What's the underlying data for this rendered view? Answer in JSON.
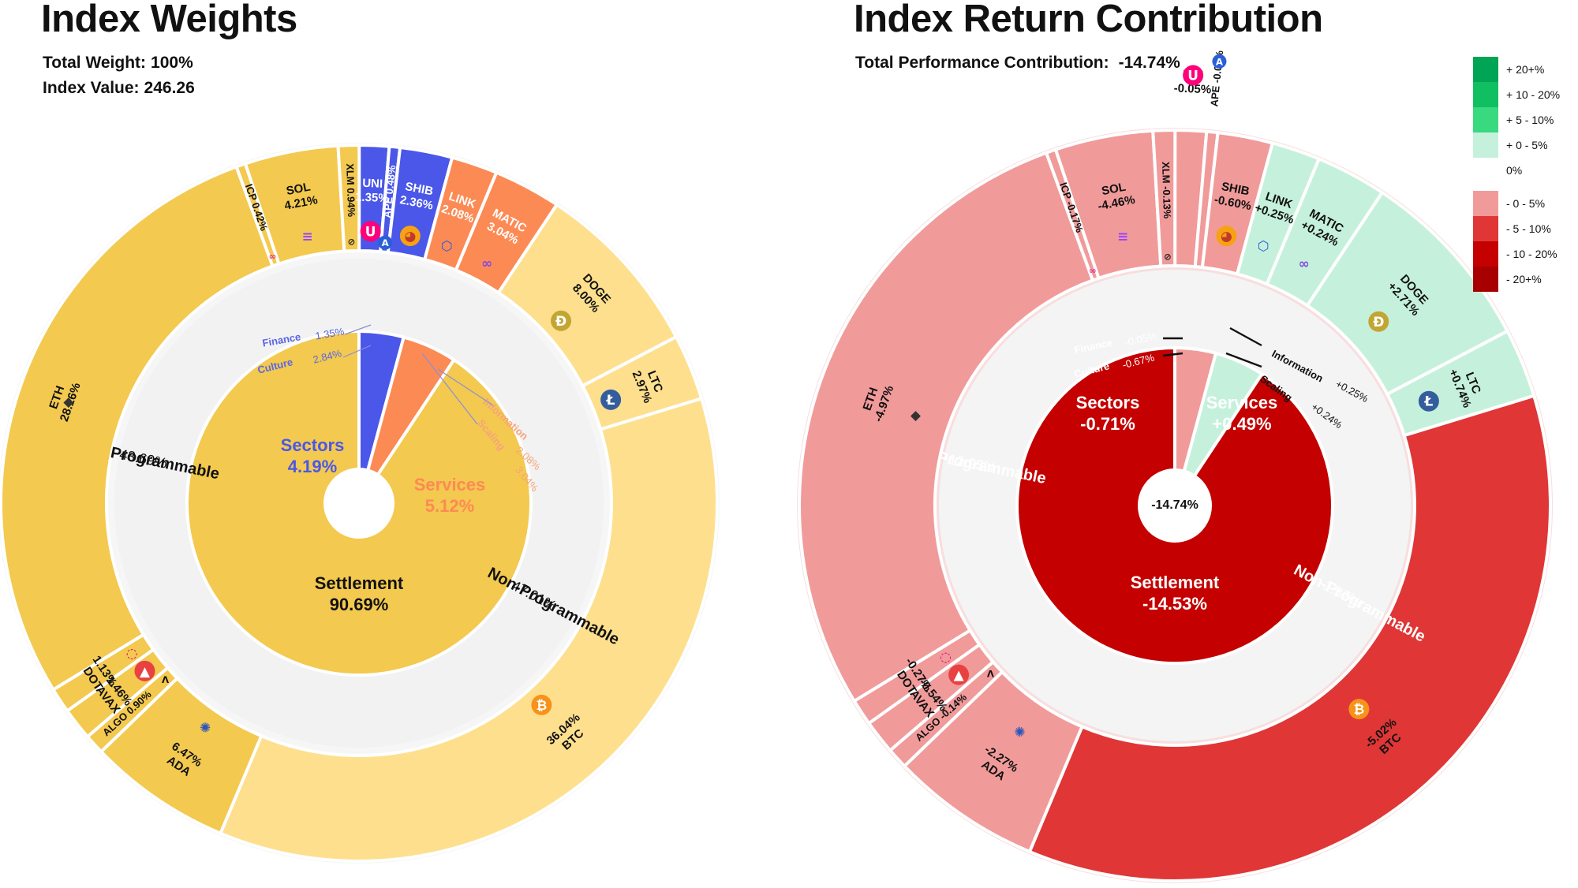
{
  "weights": {
    "title": "Index Weights",
    "total_weight_label": "Total Weight:",
    "total_weight_value": "100%",
    "index_value_label": "Index Value:",
    "index_value": "246.26"
  },
  "returns": {
    "title": "Index Return Contribution",
    "total_label": "Total Performance Contribution:",
    "total_value": "-14.74%"
  },
  "legend": [
    {
      "label": "+ 20+%",
      "color": "#00a455"
    },
    {
      "label": "+ 10 - 20%",
      "color": "#10bf62"
    },
    {
      "label": "+ 5 - 10%",
      "color": "#39d97f"
    },
    {
      "label": "+ 0 - 5%",
      "color": "#c5f1dc"
    },
    {
      "label": "0%",
      "color": "#ffffff"
    },
    {
      "label": "- 0 - 5%",
      "color": "#f19a9a"
    },
    {
      "label": "- 5 - 10%",
      "color": "#e03636"
    },
    {
      "label": "- 10 - 20%",
      "color": "#c40000"
    },
    {
      "label": "- 20+%",
      "color": "#a80000"
    }
  ],
  "icons": {
    "ETH": "ethereum-icon",
    "SOL": "solana-icon",
    "ICP": "internet-computer-icon",
    "XLM": "stellar-icon",
    "APE": "apecoin-icon",
    "SHIB": "shiba-inu-icon",
    "UNI": "uniswap-icon",
    "LINK": "chainlink-icon",
    "MATIC": "polygon-icon",
    "DOGE": "dogecoin-icon",
    "LTC": "litecoin-icon",
    "BTC": "bitcoin-icon",
    "ADA": "cardano-icon",
    "ALGO": "algorand-icon",
    "AVAX": "avalanche-icon",
    "DOT": "polkadot-icon"
  },
  "chart_data": [
    {
      "type": "sunburst",
      "title": "Index Weights",
      "center_label": "",
      "rings": {
        "sectors": [
          {
            "name": "Sectors",
            "value": 4.19,
            "label": "4.19%",
            "color": "#4a57e8"
          },
          {
            "name": "Services",
            "value": 5.12,
            "label": "5.12%",
            "color": "#fc8a55"
          },
          {
            "name": "Settlement",
            "value": 90.69,
            "label": "90.69%",
            "color": "#f3c94f"
          }
        ],
        "groups": [
          {
            "name": "Finance",
            "value": 1.35,
            "label": "1.35%",
            "sector": "Sectors",
            "color": "#4a57e8"
          },
          {
            "name": "Culture",
            "value": 2.84,
            "label": "2.84%",
            "sector": "Sectors",
            "color": "#4a57e8"
          },
          {
            "name": "Information",
            "value": 2.08,
            "label": "2.08%",
            "sector": "Services",
            "color": "#fc8a55"
          },
          {
            "name": "Scaling",
            "value": 3.04,
            "label": "3.04%",
            "sector": "Services",
            "color": "#fc8a55"
          },
          {
            "name": "Non-Programmable",
            "value": 47.01,
            "label": "47.01%",
            "sector": "Settlement",
            "color": "#fddf8e"
          },
          {
            "name": "Programmable",
            "value": 43.69,
            "label": "43.69%",
            "sector": "Settlement",
            "color": "#f3c94f"
          }
        ],
        "assets": [
          {
            "name": "UNI",
            "value": 1.35,
            "label": "1.35%",
            "group": "Finance",
            "color": "#4a57e8"
          },
          {
            "name": "APE",
            "value": 0.48,
            "label": "0.48%",
            "group": "Culture",
            "color": "#4a57e8"
          },
          {
            "name": "SHIB",
            "value": 2.36,
            "label": "2.36%",
            "group": "Culture",
            "color": "#4a57e8"
          },
          {
            "name": "LINK",
            "value": 2.08,
            "label": "2.08%",
            "group": "Information",
            "color": "#fc8a55"
          },
          {
            "name": "MATIC",
            "value": 3.04,
            "label": "3.04%",
            "group": "Scaling",
            "color": "#fc8a55"
          },
          {
            "name": "DOGE",
            "value": 8.0,
            "label": "8.00%",
            "group": "Non-Programmable",
            "color": "#fddf8e"
          },
          {
            "name": "LTC",
            "value": 2.97,
            "label": "2.97%",
            "group": "Non-Programmable",
            "color": "#fddf8e"
          },
          {
            "name": "BTC",
            "value": 36.04,
            "label": "36.04%",
            "group": "Non-Programmable",
            "color": "#fddf8e"
          },
          {
            "name": "ADA",
            "value": 6.47,
            "label": "6.47%",
            "group": "Programmable",
            "color": "#f3c94f"
          },
          {
            "name": "ALGO",
            "value": 0.9,
            "label": "0.90%",
            "group": "Programmable",
            "color": "#f3c94f"
          },
          {
            "name": "AVAX",
            "value": 1.46,
            "label": "1.46%",
            "group": "Programmable",
            "color": "#f3c94f"
          },
          {
            "name": "DOT",
            "value": 1.13,
            "label": "1.13%",
            "group": "Programmable",
            "color": "#f3c94f"
          },
          {
            "name": "ETH",
            "value": 28.16,
            "label": "28.16%",
            "group": "Programmable",
            "color": "#f3c94f"
          },
          {
            "name": "ICP",
            "value": 0.42,
            "label": "0.42%",
            "group": "Programmable",
            "color": "#f3c94f"
          },
          {
            "name": "SOL",
            "value": 4.21,
            "label": "4.21%",
            "group": "Programmable",
            "color": "#f3c94f"
          },
          {
            "name": "XLM",
            "value": 0.94,
            "label": "0.94%",
            "group": "Programmable",
            "color": "#f3c94f"
          }
        ]
      }
    },
    {
      "type": "sunburst",
      "title": "Index Return Contribution",
      "center_label": "-14.74%",
      "rings": {
        "sectors": [
          {
            "name": "Sectors",
            "value": 4.19,
            "label": "-0.71%",
            "color": "#f19a9a"
          },
          {
            "name": "Services",
            "value": 5.12,
            "label": "+0.49%",
            "color": "#c5f1dc"
          },
          {
            "name": "Settlement",
            "value": 90.69,
            "label": "-14.53%",
            "color": "#c40000"
          }
        ],
        "groups": [
          {
            "name": "Finance",
            "value": 1.35,
            "label": "-0.05%",
            "sector": "Sectors",
            "color": "#f19a9a"
          },
          {
            "name": "Culture",
            "value": 2.84,
            "label": "-0.67%",
            "sector": "Sectors",
            "color": "#f19a9a"
          },
          {
            "name": "Information",
            "value": 2.08,
            "label": "+0.25%",
            "sector": "Services",
            "color": "#c5f1dc"
          },
          {
            "name": "Scaling",
            "value": 3.04,
            "label": "+0.24%",
            "sector": "Services",
            "color": "#c5f1dc"
          },
          {
            "name": "Non-Programmable",
            "value": 47.01,
            "label": "-1.57%",
            "sector": "Settlement",
            "color": "#f19a9a"
          },
          {
            "name": "Programmable",
            "value": 43.69,
            "label": "-12.95%",
            "sector": "Settlement",
            "color": "#c40000"
          }
        ],
        "assets": [
          {
            "name": "UNI",
            "value": 1.35,
            "label": "-0.05%",
            "group": "Finance",
            "color": "#f19a9a"
          },
          {
            "name": "APE",
            "value": 0.48,
            "label": "-0.07%",
            "group": "Culture",
            "color": "#f19a9a"
          },
          {
            "name": "SHIB",
            "value": 2.36,
            "label": "-0.60%",
            "group": "Culture",
            "color": "#f19a9a"
          },
          {
            "name": "LINK",
            "value": 2.08,
            "label": "+0.25%",
            "group": "Information",
            "color": "#c5f1dc"
          },
          {
            "name": "MATIC",
            "value": 3.04,
            "label": "+0.24%",
            "group": "Scaling",
            "color": "#c5f1dc"
          },
          {
            "name": "DOGE",
            "value": 8.0,
            "label": "+2.71%",
            "group": "Non-Programmable",
            "color": "#c5f1dc"
          },
          {
            "name": "LTC",
            "value": 2.97,
            "label": "+0.74%",
            "group": "Non-Programmable",
            "color": "#c5f1dc"
          },
          {
            "name": "BTC",
            "value": 36.04,
            "label": "-5.02%",
            "group": "Non-Programmable",
            "color": "#e03636"
          },
          {
            "name": "ADA",
            "value": 6.47,
            "label": "-2.27%",
            "group": "Programmable",
            "color": "#f19a9a"
          },
          {
            "name": "ALGO",
            "value": 0.9,
            "label": "-0.14%",
            "group": "Programmable",
            "color": "#f19a9a"
          },
          {
            "name": "AVAX",
            "value": 1.46,
            "label": "-0.54%",
            "group": "Programmable",
            "color": "#f19a9a"
          },
          {
            "name": "DOT",
            "value": 1.13,
            "label": "-0.27%",
            "group": "Programmable",
            "color": "#f19a9a"
          },
          {
            "name": "ETH",
            "value": 28.16,
            "label": "-4.97%",
            "group": "Programmable",
            "color": "#f19a9a"
          },
          {
            "name": "ICP",
            "value": 0.42,
            "label": "-0.17%",
            "group": "Programmable",
            "color": "#f19a9a"
          },
          {
            "name": "SOL",
            "value": 4.21,
            "label": "-4.46%",
            "group": "Programmable",
            "color": "#f19a9a"
          },
          {
            "name": "XLM",
            "value": 0.94,
            "label": "-0.13%",
            "group": "Programmable",
            "color": "#f19a9a"
          }
        ]
      }
    }
  ]
}
